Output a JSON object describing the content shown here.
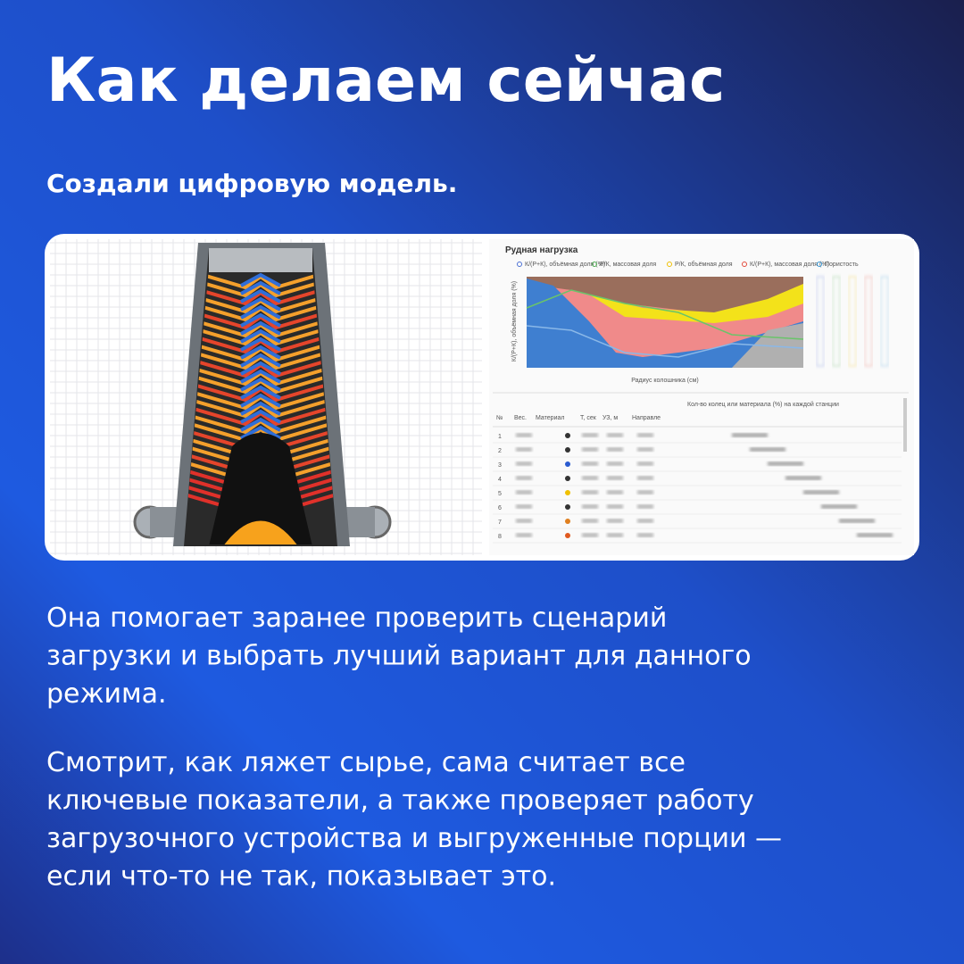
{
  "header": {
    "title": "Как делаем сейчас",
    "subtitle": "Создали цифровую модель."
  },
  "screenshot": {
    "chart": {
      "title": "Рудная нагрузка",
      "legend": [
        "К/(Р+К), объёмная доля (%)",
        "Р/К, массовая доля",
        "Р/К, объёмная доля",
        "К/(Р+К), массовая доля (%)",
        "Пористость"
      ],
      "y_label": "К/(Р+К), объёмная доля (%)",
      "x_label": "Радиус колошника (см)"
    },
    "table": {
      "columns": [
        "№",
        "Вес.",
        "Материал",
        "Т, сек",
        "УЗ, м",
        "Направле"
      ],
      "group_header": "Кол-во колец или материала (%) на каждой станции",
      "rows": [
        "1",
        "2",
        "3",
        "4",
        "5",
        "6",
        "7",
        "8"
      ]
    }
  },
  "body": {
    "paragraphs": [
      [
        "Она помогает заранее проверить сценарий",
        "загрузки и выбрать лучший вариант для данного",
        "режима."
      ],
      [
        "Смотрит, как ляжет сырье, сама считает все",
        "ключевые показатели, а также проверяет работу",
        "загрузочного устройства и выгруженные порции —",
        "если что-то не так, показывает это."
      ]
    ]
  }
}
